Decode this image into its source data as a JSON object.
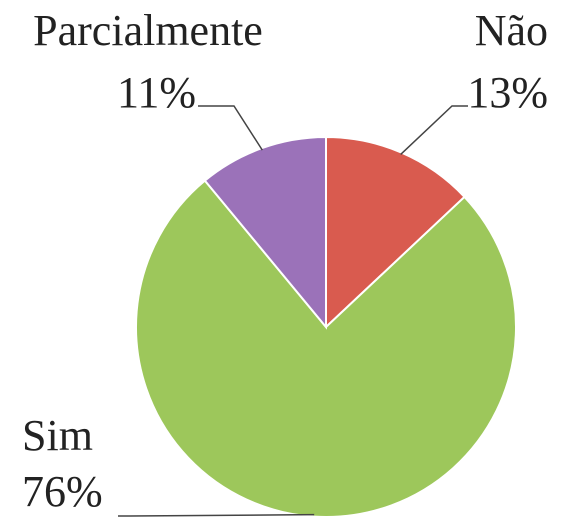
{
  "chart_data": {
    "type": "pie",
    "categories": [
      "Não",
      "Sim",
      "Parcialmente"
    ],
    "values": [
      13,
      76,
      11
    ],
    "value_labels": [
      "13%",
      "76%",
      "11%"
    ],
    "colors": [
      "#d95b4f",
      "#9dc75b",
      "#9b72b9"
    ]
  }
}
